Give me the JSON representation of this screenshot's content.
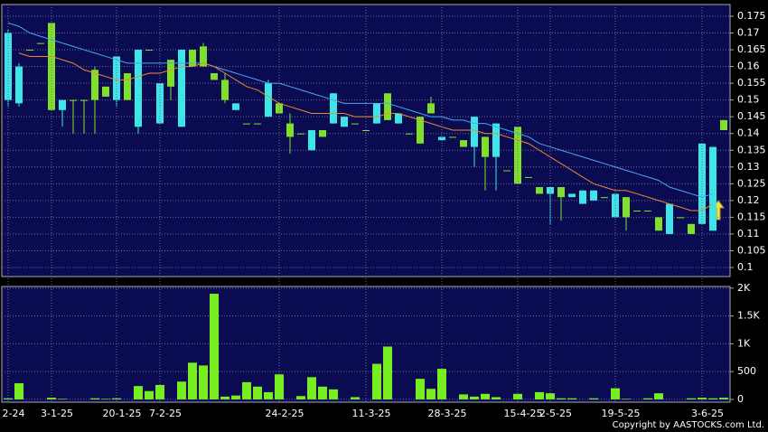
{
  "chart_data": [
    {
      "type": "candlestick",
      "open": [
        0.17,
        0.16,
        0.165,
        0.167,
        0.147,
        0.15,
        0.15,
        0.15,
        0.15,
        0.151,
        0.163,
        0.15,
        0.165,
        0.165,
        0.155,
        0.154,
        0.165,
        0.16,
        0.16,
        0.156,
        0.15,
        0.149,
        0.143,
        0.143,
        0.155,
        0.146,
        0.139,
        0.14,
        0.141,
        0.139,
        0.152,
        0.145,
        0.143,
        0.141,
        0.149,
        0.144,
        0.146,
        0.14,
        0.137,
        0.146,
        0.139,
        0.139,
        0.136,
        0.145,
        0.133,
        0.143,
        0.129,
        0.125,
        0.127,
        0.122,
        0.124,
        0.121,
        0.122,
        0.123,
        0.123,
        0.121,
        0.122,
        0.115,
        0.117,
        0.117,
        0.111,
        0.119,
        0.115,
        0.11,
        0.137,
        0.136,
        0.141
      ],
      "high": [
        0.171,
        0.161,
        0.165,
        0.167,
        0.173,
        0.15,
        0.15,
        0.15,
        0.16,
        0.154,
        0.163,
        0.158,
        0.165,
        0.165,
        0.155,
        0.162,
        0.165,
        0.165,
        0.167,
        0.158,
        0.158,
        0.149,
        0.143,
        0.143,
        0.156,
        0.149,
        0.146,
        0.14,
        0.141,
        0.141,
        0.152,
        0.145,
        0.143,
        0.141,
        0.149,
        0.152,
        0.146,
        0.14,
        0.145,
        0.151,
        0.139,
        0.139,
        0.138,
        0.145,
        0.139,
        0.143,
        0.129,
        0.142,
        0.127,
        0.124,
        0.124,
        0.124,
        0.122,
        0.123,
        0.123,
        0.121,
        0.122,
        0.121,
        0.117,
        0.117,
        0.115,
        0.119,
        0.115,
        0.113,
        0.137,
        0.136,
        0.144
      ],
      "low": [
        0.148,
        0.148,
        0.165,
        0.167,
        0.147,
        0.142,
        0.14,
        0.14,
        0.14,
        0.151,
        0.148,
        0.15,
        0.14,
        0.165,
        0.143,
        0.15,
        0.142,
        0.16,
        0.16,
        0.156,
        0.149,
        0.147,
        0.143,
        0.143,
        0.145,
        0.146,
        0.134,
        0.14,
        0.135,
        0.139,
        0.143,
        0.142,
        0.143,
        0.141,
        0.143,
        0.144,
        0.143,
        0.14,
        0.137,
        0.146,
        0.138,
        0.139,
        0.136,
        0.13,
        0.123,
        0.123,
        0.129,
        0.125,
        0.127,
        0.122,
        0.113,
        0.114,
        0.121,
        0.119,
        0.12,
        0.121,
        0.115,
        0.111,
        0.117,
        0.117,
        0.111,
        0.11,
        0.115,
        0.11,
        0.113,
        0.111,
        0.141
      ],
      "close": [
        0.15,
        0.149,
        0.165,
        0.167,
        0.173,
        0.147,
        0.15,
        0.15,
        0.159,
        0.154,
        0.15,
        0.158,
        0.142,
        0.165,
        0.143,
        0.162,
        0.142,
        0.165,
        0.166,
        0.158,
        0.156,
        0.147,
        0.143,
        0.143,
        0.145,
        0.149,
        0.143,
        0.14,
        0.135,
        0.141,
        0.143,
        0.142,
        0.143,
        0.141,
        0.143,
        0.152,
        0.143,
        0.14,
        0.145,
        0.149,
        0.138,
        0.139,
        0.138,
        0.136,
        0.139,
        0.133,
        0.129,
        0.142,
        0.127,
        0.124,
        0.122,
        0.124,
        0.121,
        0.119,
        0.12,
        0.121,
        0.115,
        0.121,
        0.117,
        0.117,
        0.115,
        0.11,
        0.115,
        0.113,
        0.113,
        0.111,
        0.144
      ],
      "up_color": "#7fe02a",
      "down_color": "#3ce6e6",
      "series": [
        {
          "color": "#4aa8f0",
          "values": [
            0.173,
            0.172,
            0.17,
            0.169,
            0.168,
            0.167,
            0.166,
            0.165,
            0.164,
            0.163,
            0.162,
            0.161,
            0.161,
            0.161,
            0.161,
            0.161,
            0.161,
            0.161,
            0.161,
            0.16,
            0.159,
            0.158,
            0.157,
            0.156,
            0.155,
            0.155,
            0.154,
            0.153,
            0.152,
            0.151,
            0.15,
            0.149,
            0.149,
            0.149,
            0.149,
            0.149,
            0.148,
            0.147,
            0.146,
            0.145,
            0.145,
            0.144,
            0.144,
            0.143,
            0.143,
            0.142,
            0.141,
            0.14,
            0.139,
            0.137,
            0.136,
            0.135,
            0.134,
            0.133,
            0.132,
            0.131,
            0.13,
            0.129,
            0.128,
            0.127,
            0.126,
            0.124,
            0.123,
            0.122,
            0.121,
            0.122,
            null
          ]
        },
        {
          "color": "#f08a30",
          "values": [
            null,
            0.164,
            0.163,
            0.163,
            0.163,
            0.162,
            0.161,
            0.159,
            0.158,
            0.157,
            0.156,
            0.156,
            0.157,
            0.158,
            0.158,
            0.159,
            0.16,
            0.16,
            0.161,
            0.16,
            0.158,
            0.156,
            0.154,
            0.153,
            0.151,
            0.149,
            0.148,
            0.147,
            0.146,
            0.146,
            0.146,
            0.146,
            0.145,
            0.145,
            0.145,
            0.146,
            0.146,
            0.145,
            0.144,
            0.143,
            0.142,
            0.141,
            0.141,
            0.141,
            0.14,
            0.14,
            0.139,
            0.138,
            0.137,
            0.135,
            0.133,
            0.131,
            0.129,
            0.127,
            0.125,
            0.124,
            0.123,
            0.123,
            0.122,
            0.121,
            0.12,
            0.119,
            0.118,
            0.117,
            0.117,
            0.119,
            null
          ]
        }
      ],
      "ylim": [
        0.0973,
        0.1785
      ],
      "yticks": [
        0.1,
        0.105,
        0.11,
        0.115,
        0.12,
        0.125,
        0.13,
        0.135,
        0.14,
        0.145,
        0.15,
        0.155,
        0.16,
        0.165,
        0.17,
        0.175
      ],
      "grid": true
    },
    {
      "type": "bar",
      "categories": [
        "2-24",
        null,
        null,
        null,
        "3-1-25",
        null,
        null,
        null,
        null,
        null,
        "20-1-25",
        null,
        null,
        null,
        "7-2-25",
        null,
        null,
        null,
        null,
        null,
        null,
        null,
        null,
        null,
        null,
        "24-2-25",
        null,
        null,
        null,
        null,
        null,
        null,
        null,
        "11-3-25",
        null,
        null,
        null,
        null,
        null,
        null,
        "28-3-25",
        null,
        null,
        null,
        null,
        null,
        null,
        "15-4-25",
        null,
        null,
        "2-5-25",
        null,
        null,
        null,
        null,
        null,
        "19-5-25",
        null,
        null,
        null,
        null,
        null,
        null,
        null,
        "3-6-25",
        null,
        null
      ],
      "values": [
        20,
        290,
        0,
        0,
        30,
        10,
        0,
        0,
        20,
        10,
        20,
        0,
        240,
        150,
        260,
        0,
        320,
        660,
        610,
        1900,
        50,
        70,
        310,
        230,
        130,
        450,
        0,
        60,
        400,
        230,
        180,
        0,
        40,
        0,
        640,
        950,
        0,
        0,
        370,
        190,
        550,
        0,
        90,
        50,
        100,
        40,
        0,
        100,
        0,
        130,
        110,
        20,
        20,
        0,
        20,
        0,
        200,
        10,
        0,
        20,
        110,
        0,
        0,
        20,
        30,
        20,
        30
      ],
      "color": "#77ee22",
      "ylim": [
        -50,
        2030
      ],
      "yticks": [
        {
          "value": 0,
          "label": "0"
        },
        {
          "value": 500,
          "label": "500"
        },
        {
          "value": 1000,
          "label": "1K"
        },
        {
          "value": 1500,
          "label": "1.5K"
        },
        {
          "value": 2000,
          "label": "2K"
        }
      ],
      "grid": true
    }
  ],
  "copyright": "Copyright by AASTOCKS.com Ltd."
}
